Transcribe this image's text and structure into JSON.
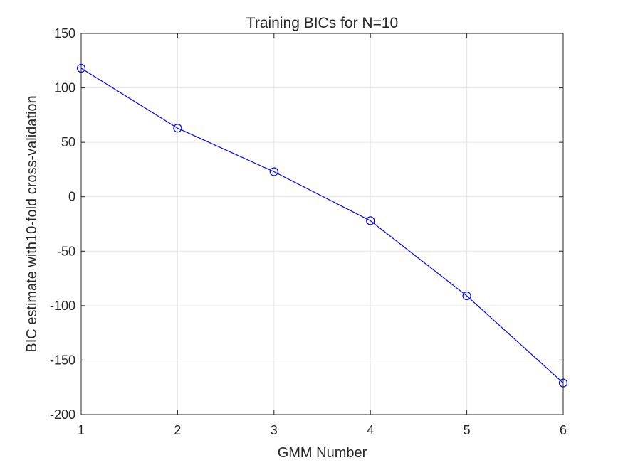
{
  "chart_data": {
    "type": "line",
    "title": "Training BICs for N=10",
    "xlabel": "GMM Number",
    "ylabel": "BIC estimate with10-fold cross-validation",
    "x": [
      1,
      2,
      3,
      4,
      5,
      6
    ],
    "series": [
      {
        "values": [
          118,
          63,
          23,
          -22,
          -91,
          -171
        ],
        "color": "#0000ff",
        "marker": "circle"
      }
    ],
    "xlim": [
      1,
      6
    ],
    "ylim": [
      -200,
      150
    ],
    "xticks": [
      "1",
      "2",
      "3",
      "4",
      "5",
      "6"
    ],
    "yticks": [
      "150",
      "100",
      "50",
      "0",
      "-50",
      "-100",
      "-150",
      "-200"
    ],
    "grid": true,
    "box": true
  }
}
